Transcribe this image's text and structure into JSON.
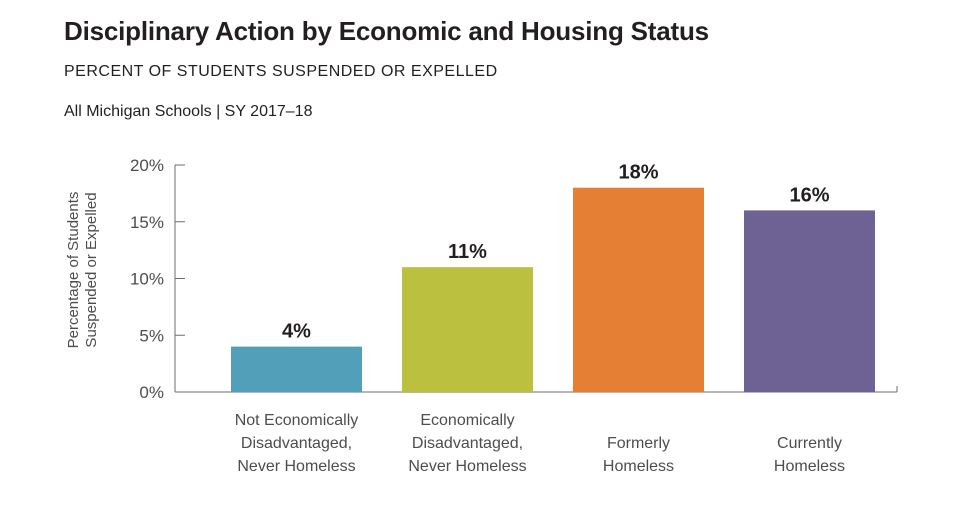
{
  "header": {
    "title": "Disciplinary Action by Economic and Housing Status",
    "subtitle": "PERCENT OF STUDENTS SUSPENDED OR EXPELLED",
    "scope": "All Michigan Schools  |  SY 2017–18"
  },
  "chart_data": {
    "type": "bar",
    "ylabel": [
      "Percentage of Students",
      "Suspended or Expelled"
    ],
    "ylim": [
      0,
      20
    ],
    "yticks": [
      0,
      5,
      10,
      15,
      20
    ],
    "ytick_labels": [
      "0%",
      "5%",
      "10%",
      "15%",
      "20%"
    ],
    "categories": [
      [
        "Not Economically",
        "Disadvantaged,",
        "Never Homeless"
      ],
      [
        "Economically",
        "Disadvantaged,",
        "Never Homeless"
      ],
      [
        "Formerly",
        "Homeless"
      ],
      [
        "Currently",
        "Homeless"
      ]
    ],
    "values": [
      4,
      11,
      18,
      16
    ],
    "data_labels": [
      "4%",
      "11%",
      "18%",
      "16%"
    ],
    "colors": [
      "#529fb9",
      "#bcc03f",
      "#e57f34",
      "#6e6194"
    ],
    "grid": false,
    "legend": "none"
  }
}
